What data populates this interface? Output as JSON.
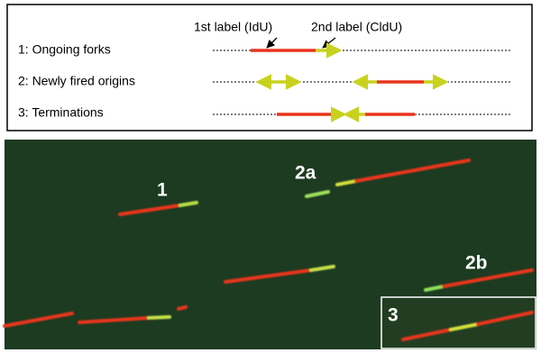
{
  "schematic": {
    "first_label": "1st label (IdU)",
    "second_label": "2nd label (CldU)",
    "rows": [
      "1: Ongoing forks",
      "2: Newly fired origins",
      "3: Terminations"
    ]
  },
  "micrograph": {
    "labels": [
      "1",
      "2a",
      "2b",
      "3"
    ]
  }
}
